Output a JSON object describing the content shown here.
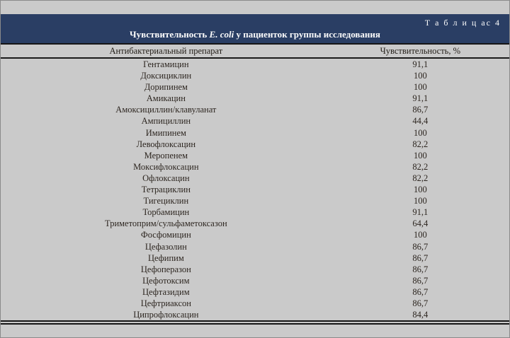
{
  "page": {
    "background_gray": "#cacaca",
    "band_navy": "#2a3e64",
    "rule_black": "#161616",
    "band_text_color": "#fdfdfd",
    "body_text_color": "#2d2620"
  },
  "table": {
    "label": "Т а б л и ц ас 4",
    "title_prefix": "Чувствительность ",
    "title_italic": "E. coli",
    "title_suffix": " у пациенток группы исследования",
    "columns": {
      "drug": "Антибактериальный препарат",
      "value": "Чувствительность, %"
    },
    "rows": [
      {
        "drug": "Гентамицин",
        "value": "91,1"
      },
      {
        "drug": "Доксициклин",
        "value": "100"
      },
      {
        "drug": "Дорипинем",
        "value": "100"
      },
      {
        "drug": "Амикацин",
        "value": "91,1"
      },
      {
        "drug": "Амоксициллин/клавуланат",
        "value": "86,7"
      },
      {
        "drug": "Ампициллин",
        "value": "44,4"
      },
      {
        "drug": "Имипинем",
        "value": "100"
      },
      {
        "drug": "Левофлоксацин",
        "value": "82,2"
      },
      {
        "drug": "Меропенем",
        "value": "100"
      },
      {
        "drug": "Моксифлоксацин",
        "value": "82,2"
      },
      {
        "drug": "Офлоксацин",
        "value": "82,2"
      },
      {
        "drug": "Тетрациклин",
        "value": "100"
      },
      {
        "drug": "Тигециклин",
        "value": "100"
      },
      {
        "drug": "Торбамицин",
        "value": "91,1"
      },
      {
        "drug": "Триметоприм/сульфаметоксазон",
        "value": "64,4"
      },
      {
        "drug": "Фосфомицин",
        "value": "100"
      },
      {
        "drug": "Цефазолин",
        "value": "86,7"
      },
      {
        "drug": "Цефипим",
        "value": "86,7"
      },
      {
        "drug": "Цефоперазон",
        "value": "86,7"
      },
      {
        "drug": "Цефотоксим",
        "value": "86,7"
      },
      {
        "drug": "Цефтазидим",
        "value": "86,7"
      },
      {
        "drug": "Цефтриаксон",
        "value": "86,7"
      },
      {
        "drug": "Ципрофлоксацин",
        "value": "84,4"
      }
    ]
  }
}
